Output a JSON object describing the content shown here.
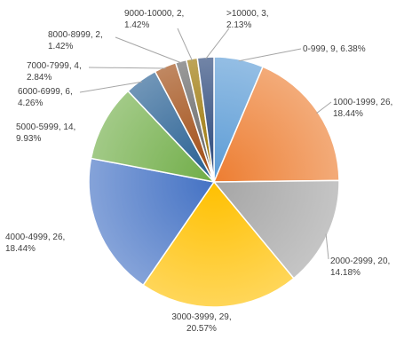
{
  "chart_data": {
    "type": "pie",
    "slices": [
      {
        "label": "0-999",
        "value": 9,
        "percent": "6.38%",
        "color": "#5B9BD5"
      },
      {
        "label": "1000-1999",
        "value": 26,
        "percent": "18.44%",
        "color": "#ED7D31"
      },
      {
        "label": "2000-2999",
        "value": 20,
        "percent": "14.18%",
        "color": "#A5A5A5"
      },
      {
        "label": "3000-3999",
        "value": 29,
        "percent": "20.57%",
        "color": "#FFC000"
      },
      {
        "label": "4000-4999",
        "value": 26,
        "percent": "18.44%",
        "color": "#4472C4"
      },
      {
        "label": "5000-5999",
        "value": 14,
        "percent": "9.93%",
        "color": "#70AD47"
      },
      {
        "label": "6000-6999",
        "value": 6,
        "percent": "4.26%",
        "color": "#255E91"
      },
      {
        "label": "7000-7999",
        "value": 4,
        "percent": "2.84%",
        "color": "#9E480E"
      },
      {
        "label": "8000-8999",
        "value": 2,
        "percent": "1.42%",
        "color": "#636363"
      },
      {
        "label": "9000-10000",
        "value": 2,
        "percent": "1.42%",
        "color": "#997300"
      },
      {
        "label": ">10000",
        "value": 3,
        "percent": "2.13%",
        "color": "#264478"
      }
    ]
  }
}
